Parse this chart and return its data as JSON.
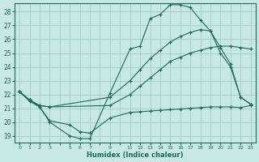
{
  "xlabel": "Humidex (Indice chaleur)",
  "bg_color": "#c8e8e5",
  "grid_color": "#a0ccc8",
  "line_color": "#1a6b5a",
  "xlim": [
    -0.5,
    23.5
  ],
  "ylim": [
    18.5,
    28.6
  ],
  "yticks": [
    19,
    20,
    21,
    22,
    23,
    24,
    25,
    26,
    27,
    28
  ],
  "xtick_labels": [
    "0",
    "1",
    "2",
    "3",
    "",
    "5",
    "6",
    "7",
    "",
    "9",
    "",
    "11",
    "12",
    "13",
    "14",
    "15",
    "16",
    "17",
    "18",
    "19",
    "20",
    "21",
    "22",
    "23"
  ],
  "curve1_x": [
    0,
    1,
    2,
    3,
    5,
    6,
    7,
    9,
    11,
    12,
    13,
    14,
    15,
    16,
    17,
    18,
    19,
    20,
    21,
    22,
    23
  ],
  "curve1_y": [
    22.2,
    21.6,
    21.1,
    20.0,
    19.0,
    18.8,
    18.8,
    22.1,
    25.3,
    25.5,
    27.5,
    27.8,
    28.5,
    28.5,
    28.3,
    27.4,
    26.6,
    25.0,
    24.0,
    21.8,
    21.3
  ],
  "curve2_x": [
    0,
    1,
    2,
    3,
    5,
    6,
    7,
    9,
    11,
    12,
    13,
    14,
    15,
    16,
    17,
    18,
    19,
    20,
    21,
    22,
    23
  ],
  "curve2_y": [
    22.2,
    21.5,
    21.1,
    20.1,
    19.8,
    19.3,
    19.2,
    20.3,
    20.7,
    20.75,
    20.8,
    20.85,
    20.9,
    20.95,
    21.0,
    21.05,
    21.1,
    21.1,
    21.1,
    21.05,
    21.2
  ],
  "curve3_x": [
    0,
    1,
    2,
    3,
    9,
    11,
    12,
    13,
    14,
    15,
    16,
    17,
    18,
    19,
    20,
    21,
    22,
    23
  ],
  "curve3_y": [
    22.2,
    21.6,
    21.2,
    21.1,
    21.2,
    22.0,
    22.6,
    23.2,
    23.8,
    24.4,
    24.7,
    25.0,
    25.2,
    25.4,
    25.5,
    25.5,
    25.4,
    25.3
  ],
  "curve4_x": [
    0,
    1,
    2,
    3,
    9,
    11,
    12,
    13,
    14,
    15,
    16,
    17,
    18,
    19,
    20,
    21,
    22,
    23
  ],
  "curve4_y": [
    22.2,
    21.6,
    21.2,
    21.1,
    21.8,
    23.0,
    23.8,
    24.6,
    25.2,
    25.8,
    26.2,
    26.5,
    26.7,
    26.6,
    25.4,
    24.2,
    21.8,
    21.3
  ]
}
